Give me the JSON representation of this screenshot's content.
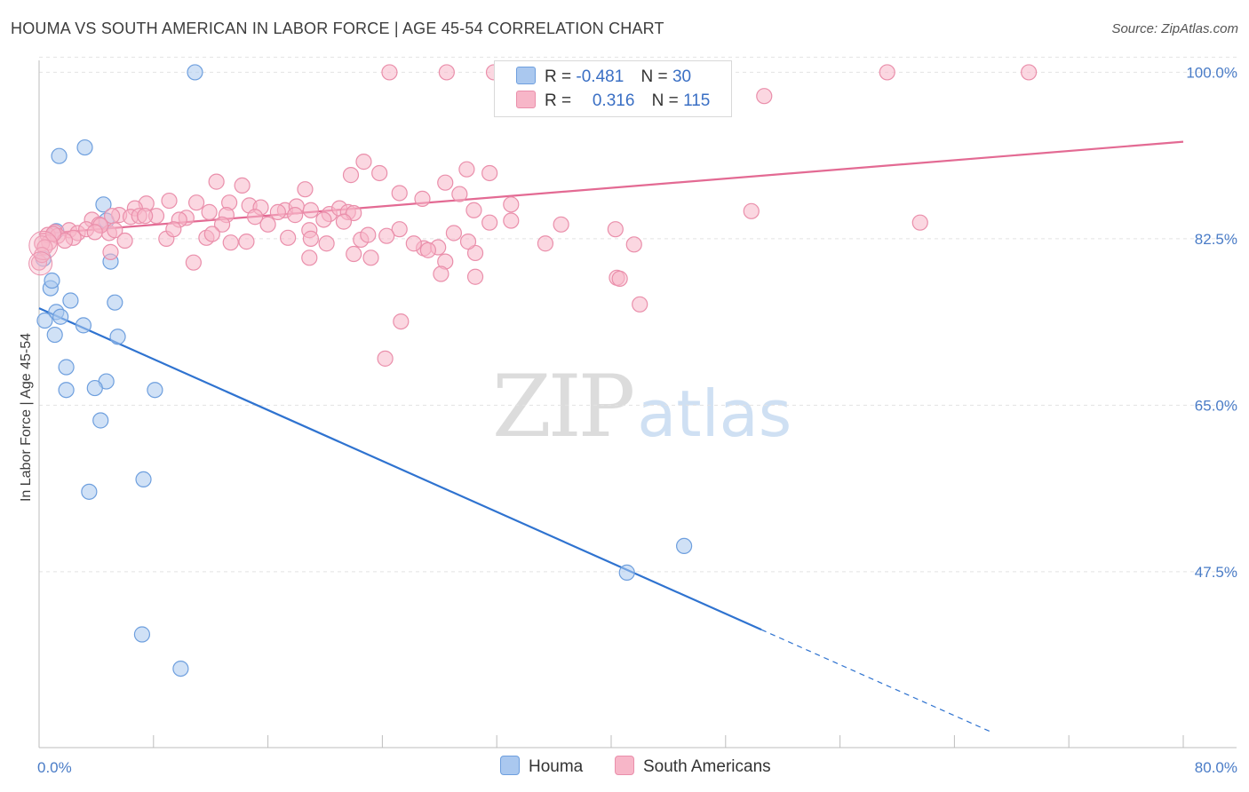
{
  "title": "HOUMA VS SOUTH AMERICAN IN LABOR FORCE | AGE 45-54 CORRELATION CHART",
  "source": "Source: ZipAtlas.com",
  "watermark": {
    "zip": "ZIP",
    "atlas": "atlas"
  },
  "legend": {
    "rows": [
      {
        "r_label": "R =",
        "r_value": "-0.481",
        "n_label": "N =",
        "n_value": "30",
        "color": "#aac8ef"
      },
      {
        "r_label": "R =",
        "r_value": "0.316",
        "n_label": "N =",
        "n_value": "115",
        "color": "#f7b6c8"
      }
    ]
  },
  "bottom_legend": [
    {
      "label": "Houma",
      "color": "#aac8ef"
    },
    {
      "label": "South Americans",
      "color": "#f7b6c8"
    }
  ],
  "chart_data": {
    "type": "scatter",
    "title": "HOUMA VS SOUTH AMERICAN IN LABOR FORCE | AGE 45-54 CORRELATION CHART",
    "xlabel": "",
    "ylabel": "In Labor Force | Age 45-54",
    "xlim": [
      0,
      80
    ],
    "ylim": [
      29,
      102
    ],
    "x_tick_labels": [
      "0.0%",
      "80.0%"
    ],
    "y_ticks": [
      47.5,
      65.0,
      82.5,
      100.0
    ],
    "y_tick_labels": [
      "47.5%",
      "65.0%",
      "82.5%",
      "100.0%"
    ],
    "grid": true,
    "legend_position": "top-center",
    "series": [
      {
        "name": "Houma",
        "color": "#aac8ef",
        "stroke": "#6e9fde",
        "trend_color": "#2f73d0",
        "trend": {
          "x0": 0,
          "y0": 75.2,
          "x1": 50.5,
          "y1": 41.4,
          "x_dash_end": 66.6
        },
        "points": [
          [
            10.9,
            100.0
          ],
          [
            3.2,
            92.1
          ],
          [
            1.4,
            91.2
          ],
          [
            4.5,
            86.1
          ],
          [
            0.3,
            80.4
          ],
          [
            5.0,
            80.1
          ],
          [
            0.8,
            77.3
          ],
          [
            0.9,
            78.1
          ],
          [
            2.2,
            76.0
          ],
          [
            5.3,
            75.8
          ],
          [
            1.2,
            74.8
          ],
          [
            1.5,
            74.3
          ],
          [
            0.4,
            73.9
          ],
          [
            3.1,
            73.4
          ],
          [
            1.1,
            72.4
          ],
          [
            5.5,
            72.2
          ],
          [
            1.9,
            69.0
          ],
          [
            4.7,
            67.5
          ],
          [
            1.9,
            66.6
          ],
          [
            3.9,
            66.8
          ],
          [
            8.1,
            66.6
          ],
          [
            4.3,
            63.4
          ],
          [
            7.3,
            57.2
          ],
          [
            3.5,
            55.9
          ],
          [
            41.1,
            47.4
          ],
          [
            45.1,
            50.2
          ],
          [
            7.2,
            40.9
          ],
          [
            9.9,
            37.3
          ],
          [
            4.7,
            84.4
          ],
          [
            1.2,
            83.3
          ]
        ]
      },
      {
        "name": "South Americans",
        "color": "#f7b6c8",
        "stroke": "#ea8fab",
        "trend_color": "#e36a93",
        "trend": {
          "x0": 0,
          "y0": 83.0,
          "x1": 80,
          "y1": 92.7
        },
        "points": [
          [
            24.5,
            100.0
          ],
          [
            28.5,
            100.0
          ],
          [
            31.8,
            100.0
          ],
          [
            59.3,
            100.0
          ],
          [
            69.2,
            100.0
          ],
          [
            50.7,
            97.5
          ],
          [
            37.6,
            97.4
          ],
          [
            22.7,
            90.6
          ],
          [
            23.8,
            89.4
          ],
          [
            29.9,
            89.8
          ],
          [
            31.5,
            89.4
          ],
          [
            12.4,
            88.5
          ],
          [
            14.2,
            88.1
          ],
          [
            18.6,
            87.7
          ],
          [
            21.8,
            89.2
          ],
          [
            25.2,
            87.3
          ],
          [
            26.8,
            86.7
          ],
          [
            28.4,
            88.4
          ],
          [
            29.4,
            87.2
          ],
          [
            9.1,
            86.5
          ],
          [
            7.5,
            86.2
          ],
          [
            11.0,
            86.3
          ],
          [
            13.3,
            86.3
          ],
          [
            14.7,
            86.0
          ],
          [
            15.5,
            85.8
          ],
          [
            17.2,
            85.5
          ],
          [
            18.0,
            85.9
          ],
          [
            19.0,
            85.5
          ],
          [
            20.3,
            85.1
          ],
          [
            21.0,
            85.7
          ],
          [
            21.6,
            85.3
          ],
          [
            22.0,
            85.2
          ],
          [
            49.8,
            85.4
          ],
          [
            6.7,
            85.7
          ],
          [
            5.6,
            85.0
          ],
          [
            5.1,
            84.9
          ],
          [
            6.4,
            84.8
          ],
          [
            7.0,
            84.9
          ],
          [
            8.2,
            84.9
          ],
          [
            10.3,
            84.7
          ],
          [
            11.9,
            85.3
          ],
          [
            13.1,
            85.0
          ],
          [
            15.1,
            84.8
          ],
          [
            16.7,
            85.3
          ],
          [
            17.9,
            85.0
          ],
          [
            3.7,
            84.5
          ],
          [
            4.2,
            84.0
          ],
          [
            9.8,
            84.5
          ],
          [
            12.8,
            84.0
          ],
          [
            16.0,
            84.0
          ],
          [
            19.9,
            84.5
          ],
          [
            21.3,
            84.3
          ],
          [
            31.5,
            84.2
          ],
          [
            36.5,
            84.0
          ],
          [
            61.6,
            84.2
          ],
          [
            18.9,
            83.4
          ],
          [
            1.1,
            83.2
          ],
          [
            2.1,
            83.4
          ],
          [
            2.7,
            83.1
          ],
          [
            3.3,
            83.5
          ],
          [
            4.9,
            83.1
          ],
          [
            5.3,
            83.4
          ],
          [
            0.6,
            82.9
          ],
          [
            1.3,
            82.8
          ],
          [
            2.4,
            82.6
          ],
          [
            1.8,
            82.3
          ],
          [
            0.7,
            82.1
          ],
          [
            0.2,
            82.0
          ],
          [
            0.4,
            81.6
          ],
          [
            0.0,
            80.0
          ],
          [
            0.2,
            80.8
          ],
          [
            1.0,
            83.0
          ],
          [
            6.0,
            82.3
          ],
          [
            8.9,
            82.5
          ],
          [
            11.7,
            82.6
          ],
          [
            13.4,
            82.1
          ],
          [
            19.0,
            82.5
          ],
          [
            22.5,
            82.4
          ],
          [
            25.2,
            83.5
          ],
          [
            29.0,
            83.1
          ],
          [
            40.3,
            83.5
          ],
          [
            35.4,
            82.0
          ],
          [
            41.6,
            81.9
          ],
          [
            24.3,
            82.8
          ],
          [
            26.9,
            81.5
          ],
          [
            27.9,
            81.6
          ],
          [
            30.5,
            81.0
          ],
          [
            18.9,
            80.5
          ],
          [
            23.2,
            80.5
          ],
          [
            22.0,
            80.9
          ],
          [
            27.2,
            81.3
          ],
          [
            10.8,
            80.0
          ],
          [
            5.0,
            81.1
          ],
          [
            12.1,
            83.0
          ],
          [
            28.4,
            80.1
          ],
          [
            28.1,
            78.8
          ],
          [
            30.5,
            78.5
          ],
          [
            40.4,
            78.4
          ],
          [
            40.6,
            78.3
          ],
          [
            42.0,
            75.6
          ],
          [
            25.3,
            73.8
          ],
          [
            24.2,
            69.9
          ],
          [
            4.3,
            83.9
          ],
          [
            7.4,
            84.9
          ],
          [
            9.4,
            83.5
          ],
          [
            14.5,
            82.2
          ],
          [
            17.4,
            82.6
          ],
          [
            20.1,
            82.0
          ],
          [
            23.0,
            82.9
          ],
          [
            26.2,
            82.0
          ],
          [
            30.0,
            82.2
          ],
          [
            33.0,
            86.1
          ],
          [
            30.4,
            85.5
          ],
          [
            33.0,
            84.4
          ],
          [
            3.9,
            83.2
          ]
        ]
      }
    ]
  }
}
